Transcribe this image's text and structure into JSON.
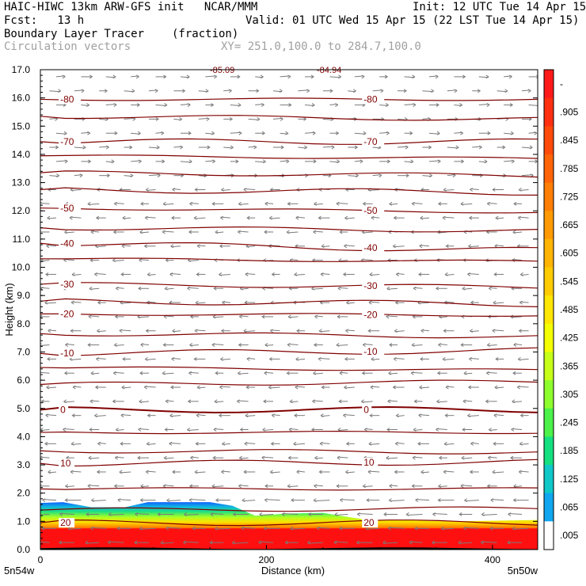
{
  "header": {
    "line1_left": "HAIC-HIWC 13km ARW-GFS init   NCAR/MMM",
    "line1_right": "Init: 12 UTC Tue 14 Apr 15",
    "line2_left": "Fcst:   13 h",
    "line2_right": "Valid: 01 UTC Wed 15 Apr 15 (22 LST Tue 14 Apr 15)",
    "line3_left": "Boundary Layer Tracer",
    "line3_units": "(fraction)",
    "line4_left": "Circulation vectors",
    "line4_xy": "XY= 251.0,100.0 to 284.7,100.0"
  },
  "chart_data": {
    "type": "heatmap",
    "ylabel": "Height (km)",
    "xlabel": "Distance (km)",
    "x_endpoints": [
      "5n54w",
      "5n50w"
    ],
    "xlim": [
      0,
      440
    ],
    "ylim": [
      0,
      17
    ],
    "x_ticks": [
      "0",
      "200",
      "400"
    ],
    "y_ticks": [
      "0.0",
      "1.0",
      "2.0",
      "3.0",
      "4.0",
      "5.0",
      "6.0",
      "7.0",
      "8.0",
      "9.0",
      "10.0",
      "11.0",
      "12.0",
      "13.0",
      "14.0",
      "15.0",
      "16.0",
      "17.0"
    ],
    "colorbar_labels": [
      "-",
      ".905",
      ".845",
      ".785",
      ".725",
      ".665",
      ".605",
      ".545",
      ".485",
      ".425",
      ".365",
      ".305",
      ".245",
      ".185",
      ".125",
      ".065",
      ".005"
    ],
    "colorbar_colors": [
      "#ff1a1a",
      "#ff3010",
      "#ff4a0a",
      "#ff6408",
      "#ff7e06",
      "#ff9a04",
      "#ffb404",
      "#ffcc04",
      "#ffe604",
      "#f4ff04",
      "#c6ff18",
      "#8eff2e",
      "#4cf24a",
      "#14e080",
      "#10c8c8",
      "#10a6f0",
      "#ffffff"
    ],
    "temperature_contours": [
      {
        "label": "-80",
        "y": [
          15.95,
          15.95
        ]
      },
      {
        "label": "",
        "y": [
          15.35,
          15.25
        ]
      },
      {
        "label": "-70",
        "y": [
          14.45,
          14.45
        ]
      },
      {
        "label": "",
        "y": [
          13.95,
          13.85
        ]
      },
      {
        "label": "",
        "y": [
          13.35,
          13.25
        ]
      },
      {
        "label": "",
        "y": [
          12.75,
          12.65
        ]
      },
      {
        "label": "-50",
        "y": [
          12.1,
          11.95
        ]
      },
      {
        "label": "",
        "y": [
          11.4,
          11.3
        ]
      },
      {
        "label": "-40",
        "y": [
          10.85,
          10.6
        ]
      },
      {
        "label": "",
        "y": [
          10.3,
          10.2
        ]
      },
      {
        "label": "-30",
        "y": [
          9.4,
          9.3
        ]
      },
      {
        "label": "",
        "y": [
          8.8,
          8.7
        ]
      },
      {
        "label": "-20",
        "y": [
          8.35,
          8.3
        ]
      },
      {
        "label": "",
        "y": [
          7.65,
          7.55
        ]
      },
      {
        "label": "-10",
        "y": [
          6.95,
          7.05
        ]
      },
      {
        "label": "",
        "y": [
          6.45,
          6.35
        ]
      },
      {
        "label": "",
        "y": [
          5.85,
          5.95
        ]
      },
      {
        "label": "0",
        "y": [
          4.95,
          4.95
        ]
      },
      {
        "label": "",
        "y": [
          4.15,
          4.15
        ]
      },
      {
        "label": "",
        "y": [
          3.5,
          3.45
        ]
      },
      {
        "label": "10",
        "y": [
          3.05,
          3.1
        ]
      },
      {
        "label": "",
        "y": [
          2.15,
          2.15
        ]
      },
      {
        "label": "",
        "y": [
          1.4,
          1.45
        ]
      },
      {
        "label": "20",
        "y": [
          0.95,
          0.95
        ]
      }
    ],
    "top_clipped_labels": [
      "-85.09",
      "-84.94"
    ],
    "boundary_layer_top_km": [
      [
        0,
        1.65
      ],
      [
        20,
        1.68
      ],
      [
        45,
        1.5
      ],
      [
        75,
        1.5
      ],
      [
        95,
        1.68
      ],
      [
        150,
        1.68
      ],
      [
        170,
        1.55
      ],
      [
        190,
        1.2
      ],
      [
        220,
        1.28
      ],
      [
        250,
        1.3
      ],
      [
        265,
        1.2
      ],
      [
        290,
        1.05
      ],
      [
        320,
        1.05
      ],
      [
        360,
        1.0
      ],
      [
        400,
        1.02
      ],
      [
        440,
        1.05
      ]
    ]
  }
}
